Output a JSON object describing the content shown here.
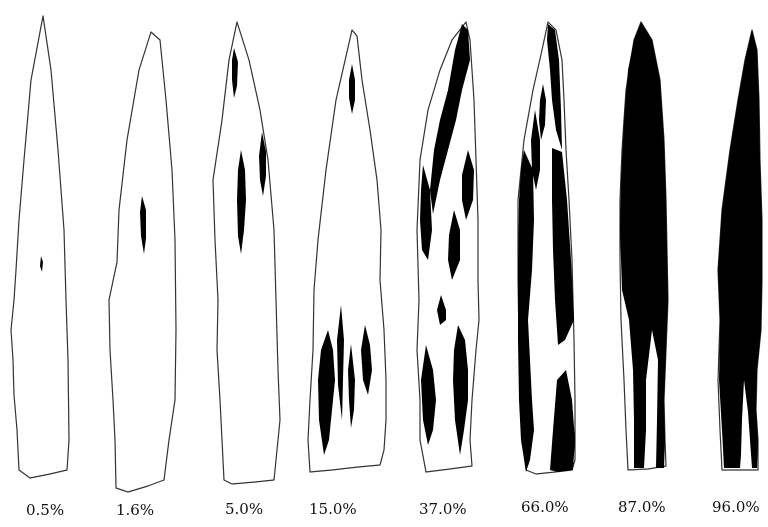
{
  "figure": {
    "leaves": [
      {
        "severity_label": "0.5%",
        "severity_percent": 0.5
      },
      {
        "severity_label": "1.6%",
        "severity_percent": 1.6
      },
      {
        "severity_label": "5.0%",
        "severity_percent": 5.0
      },
      {
        "severity_label": "15.0%",
        "severity_percent": 15.0
      },
      {
        "severity_label": "37.0%",
        "severity_percent": 37.0
      },
      {
        "severity_label": "66.0%",
        "severity_percent": 66.0
      },
      {
        "severity_label": "87.0%",
        "severity_percent": 87.0
      },
      {
        "severity_label": "96.0%",
        "severity_percent": 96.0
      }
    ],
    "colors": {
      "leaf_fill": "#ffffff",
      "outline": "#333333",
      "lesion": "#000000"
    }
  }
}
